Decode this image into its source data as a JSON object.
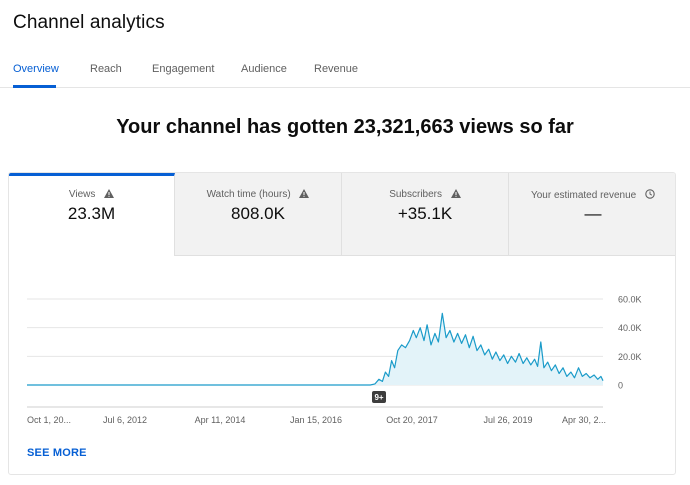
{
  "page": {
    "title": "Channel analytics"
  },
  "tabs": [
    {
      "label": "Overview",
      "active": true
    },
    {
      "label": "Reach",
      "active": false
    },
    {
      "label": "Engagement",
      "active": false
    },
    {
      "label": "Audience",
      "active": false
    },
    {
      "label": "Revenue",
      "active": false
    }
  ],
  "headline": "Your channel has gotten 23,321,663 views so far",
  "metrics": [
    {
      "label": "Views",
      "value": "23.3M",
      "icon": "warning-icon",
      "active": true
    },
    {
      "label": "Watch time (hours)",
      "value": "808.0K",
      "icon": "warning-icon",
      "active": false
    },
    {
      "label": "Subscribers",
      "value": "+35.1K",
      "icon": "warning-icon",
      "active": false
    },
    {
      "label": "Your estimated revenue",
      "value": "—",
      "icon": "clock-icon",
      "active": false
    }
  ],
  "colors": {
    "accent": "#065fd4",
    "line": "#1a9bc9",
    "area": "#e3f3f9"
  },
  "chart_data": {
    "type": "area",
    "x_tick_labels": [
      "Oct 1, 20...",
      "Jul 6, 2012",
      "Apr 11, 2014",
      "Jan 15, 2016",
      "Oct 20, 2017",
      "Jul 26, 2019",
      "Apr 30, 2..."
    ],
    "y_tick_labels": [
      "60.0K",
      "40.0K",
      "20.0K",
      "0"
    ],
    "ylim": [
      0,
      60000
    ],
    "xlim": [
      "2010-10-01",
      "2021-03-01"
    ],
    "grid": true,
    "marker_badge": "9+",
    "series": [
      {
        "values": [
          {
            "x": "2010-10-01",
            "y": 0
          },
          {
            "x": "2016-12-15",
            "y": 0
          },
          {
            "x": "2017-01-15",
            "y": 800
          },
          {
            "x": "2017-02-10",
            "y": 4000
          },
          {
            "x": "2017-03-05",
            "y": 2500
          },
          {
            "x": "2017-03-25",
            "y": 9000
          },
          {
            "x": "2017-04-15",
            "y": 6000
          },
          {
            "x": "2017-05-05",
            "y": 17000
          },
          {
            "x": "2017-05-25",
            "y": 12000
          },
          {
            "x": "2017-06-15",
            "y": 24000
          },
          {
            "x": "2017-07-10",
            "y": 28000
          },
          {
            "x": "2017-08-05",
            "y": 26000
          },
          {
            "x": "2017-09-01",
            "y": 31000
          },
          {
            "x": "2017-09-25",
            "y": 38000
          },
          {
            "x": "2017-10-15",
            "y": 33000
          },
          {
            "x": "2017-11-10",
            "y": 40000
          },
          {
            "x": "2017-12-05",
            "y": 31000
          },
          {
            "x": "2017-12-25",
            "y": 42000
          },
          {
            "x": "2018-01-20",
            "y": 28000
          },
          {
            "x": "2018-02-15",
            "y": 36000
          },
          {
            "x": "2018-03-10",
            "y": 30000
          },
          {
            "x": "2018-04-05",
            "y": 50000
          },
          {
            "x": "2018-04-30",
            "y": 33000
          },
          {
            "x": "2018-05-25",
            "y": 38000
          },
          {
            "x": "2018-06-20",
            "y": 30000
          },
          {
            "x": "2018-07-15",
            "y": 36000
          },
          {
            "x": "2018-08-10",
            "y": 29000
          },
          {
            "x": "2018-09-05",
            "y": 35000
          },
          {
            "x": "2018-09-30",
            "y": 26000
          },
          {
            "x": "2018-10-25",
            "y": 34000
          },
          {
            "x": "2018-11-20",
            "y": 24000
          },
          {
            "x": "2018-12-15",
            "y": 28000
          },
          {
            "x": "2019-01-10",
            "y": 21000
          },
          {
            "x": "2019-02-05",
            "y": 25000
          },
          {
            "x": "2019-03-01",
            "y": 18000
          },
          {
            "x": "2019-03-25",
            "y": 23000
          },
          {
            "x": "2019-04-20",
            "y": 17000
          },
          {
            "x": "2019-05-15",
            "y": 21000
          },
          {
            "x": "2019-06-10",
            "y": 15000
          },
          {
            "x": "2019-07-05",
            "y": 20000
          },
          {
            "x": "2019-08-01",
            "y": 16000
          },
          {
            "x": "2019-08-25",
            "y": 22000
          },
          {
            "x": "2019-09-20",
            "y": 15000
          },
          {
            "x": "2019-10-15",
            "y": 19000
          },
          {
            "x": "2019-11-10",
            "y": 14000
          },
          {
            "x": "2019-12-05",
            "y": 18000
          },
          {
            "x": "2019-12-25",
            "y": 13000
          },
          {
            "x": "2020-01-15",
            "y": 30000
          },
          {
            "x": "2020-02-05",
            "y": 12000
          },
          {
            "x": "2020-03-01",
            "y": 16000
          },
          {
            "x": "2020-03-25",
            "y": 10000
          },
          {
            "x": "2020-04-20",
            "y": 14000
          },
          {
            "x": "2020-05-15",
            "y": 8000
          },
          {
            "x": "2020-06-10",
            "y": 12000
          },
          {
            "x": "2020-07-05",
            "y": 6000
          },
          {
            "x": "2020-08-01",
            "y": 9000
          },
          {
            "x": "2020-08-25",
            "y": 5000
          },
          {
            "x": "2020-09-20",
            "y": 12000
          },
          {
            "x": "2020-10-15",
            "y": 6000
          },
          {
            "x": "2020-11-10",
            "y": 8000
          },
          {
            "x": "2020-12-05",
            "y": 5000
          },
          {
            "x": "2021-01-01",
            "y": 7000
          },
          {
            "x": "2021-01-25",
            "y": 4000
          },
          {
            "x": "2021-02-15",
            "y": 6000
          },
          {
            "x": "2021-03-01",
            "y": 3000
          }
        ]
      }
    ]
  },
  "see_more_label": "SEE MORE"
}
